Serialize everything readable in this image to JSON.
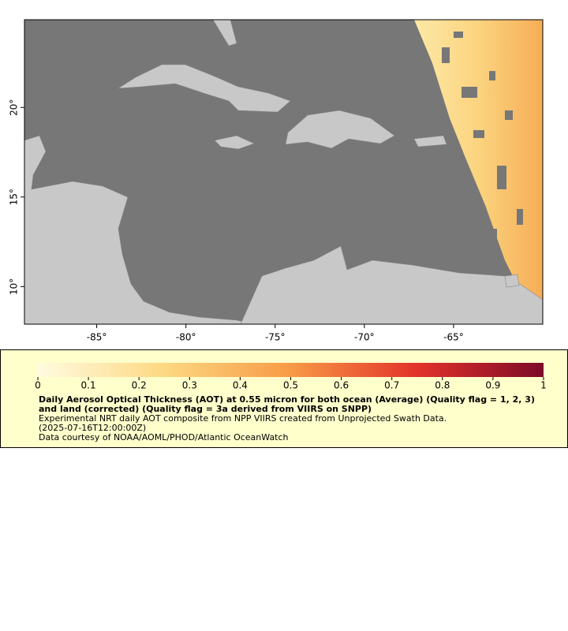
{
  "map": {
    "xlim": [
      -89.05,
      -60
    ],
    "ylim": [
      7.9,
      24.9
    ],
    "xticks": [
      {
        "value": -85,
        "label": "-85°"
      },
      {
        "value": -80,
        "label": "-80°"
      },
      {
        "value": -75,
        "label": "-75°"
      },
      {
        "value": -70,
        "label": "-70°"
      },
      {
        "value": -65,
        "label": "-65°"
      }
    ],
    "yticks": [
      {
        "value": 10,
        "label": "10°"
      },
      {
        "value": 15,
        "label": "15°"
      },
      {
        "value": 20,
        "label": "20°"
      }
    ]
  },
  "colorbar": {
    "lim": [
      0,
      1
    ],
    "ticks": [
      0,
      0.1,
      0.2,
      0.3,
      0.4,
      0.5,
      0.6,
      0.7,
      0.8,
      0.9,
      1
    ]
  },
  "caption": {
    "title": "Daily Aerosol Optical Thickness (AOT) at 0.55 micron for both ocean (Average) (Quality flag = 1, 2, 3) and land (corrected) (Quality flag = 3a derived from VIIRS on SNPP)",
    "lines": [
      "Experimental NRT daily AOT composite from NPP VIIRS created from Unprojected Swath Data.",
      "(2025-07-16T12:00:00Z)",
      "Data courtesy of NOAA/AOML/PHOD/Atlantic OceanWatch"
    ]
  }
}
